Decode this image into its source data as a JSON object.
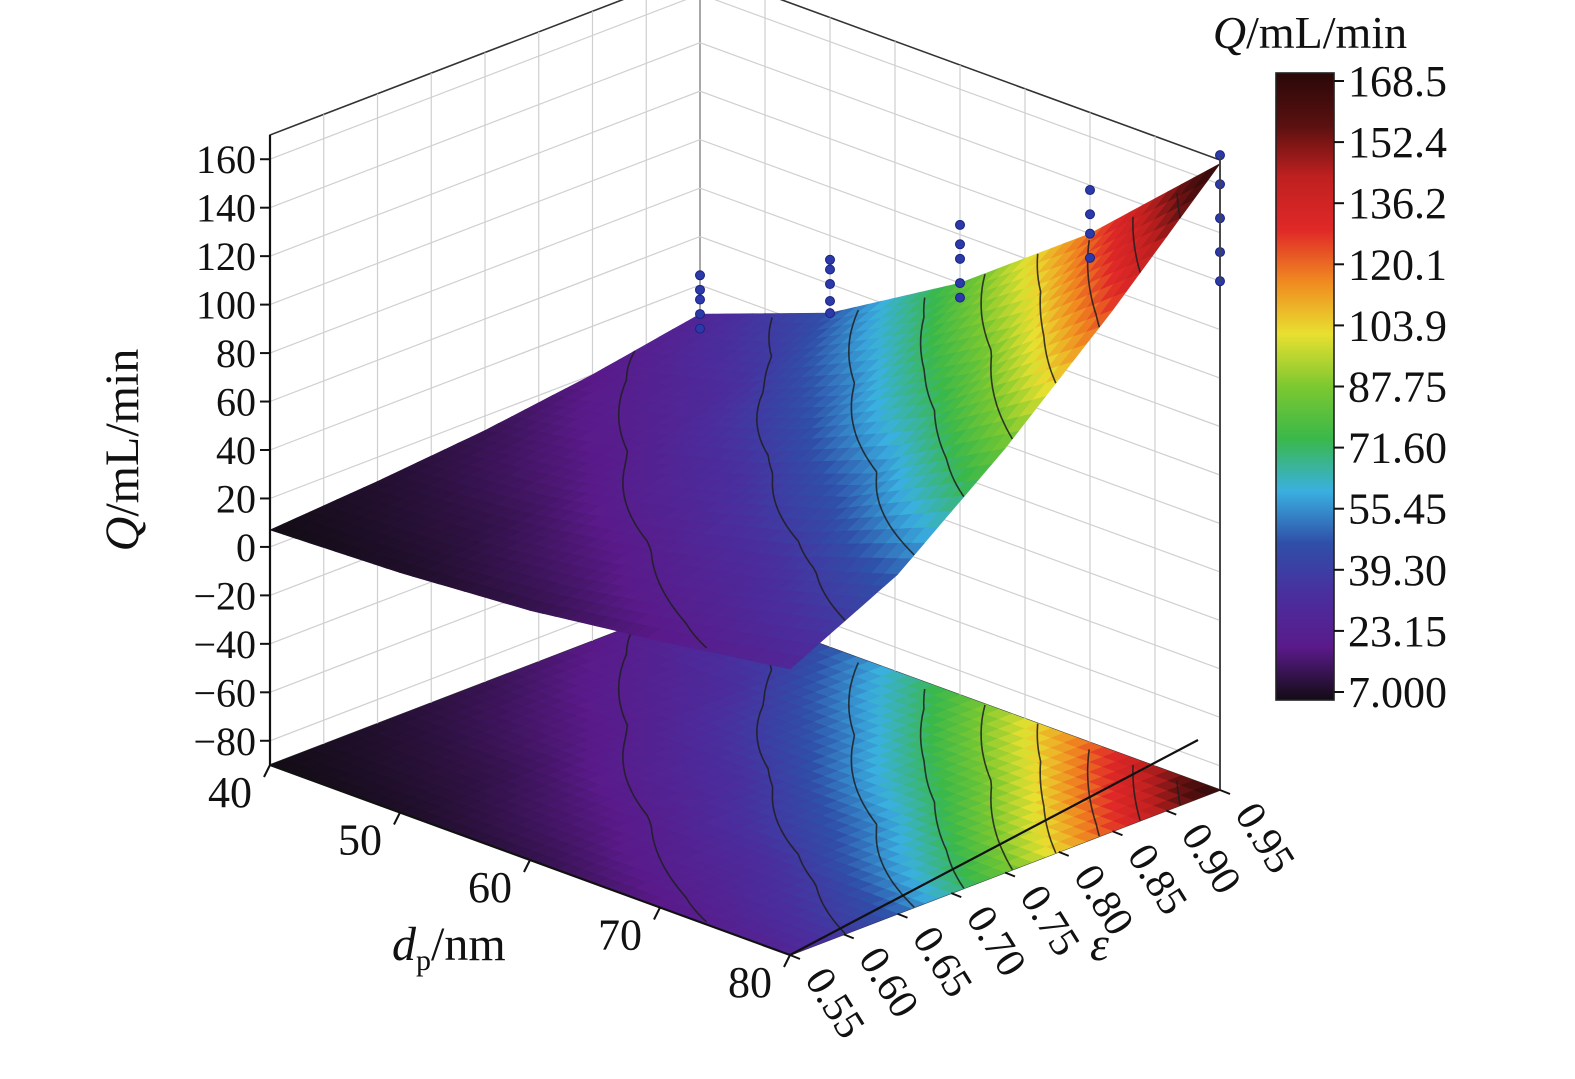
{
  "chart_data": {
    "type": "surface3d",
    "x_axis": {
      "label_main": "d",
      "label_sub": "p",
      "label_unit": "/nm",
      "range": [
        40,
        80
      ],
      "ticks": [
        "40",
        "50",
        "60",
        "70",
        "80"
      ]
    },
    "y_axis": {
      "label": "ε",
      "range": [
        0.55,
        0.95
      ],
      "ticks": [
        "0.55",
        "0.60",
        "0.65",
        "0.70",
        "0.75",
        "0.80",
        "0.85",
        "0.90",
        "0.95"
      ]
    },
    "z_axis": {
      "label_italic": "Q",
      "label_unit": "/mL/min",
      "range": [
        -90,
        170
      ],
      "ticks": [
        "−80",
        "−60",
        "−40",
        "−20",
        "0",
        "20",
        "40",
        "60",
        "80",
        "100",
        "120",
        "140",
        "160"
      ]
    },
    "colorbar": {
      "title_italic": "Q",
      "title_unit": "/mL/min",
      "labels": [
        "168.5",
        "152.4",
        "136.2",
        "120.1",
        "103.9",
        "87.75",
        "71.60",
        "55.45",
        "39.30",
        "23.15",
        "7.000"
      ],
      "min": 7.0,
      "max": 168.5,
      "colors": [
        "#120c14",
        "#5a1a8a",
        "#4a2e9e",
        "#2f4fa8",
        "#3ab0e0",
        "#3ab84a",
        "#7cc830",
        "#e8e030",
        "#f08a20",
        "#e02828",
        "#c02020",
        "#5a1010",
        "#2a0808"
      ]
    },
    "surface": {
      "x": [
        40,
        50,
        60,
        70,
        80
      ],
      "y": [
        0.55,
        0.65,
        0.75,
        0.85,
        0.95
      ],
      "z": [
        [
          7,
          9,
          13,
          20,
          28
        ],
        [
          10,
          14,
          22,
          33,
          50
        ],
        [
          14,
          22,
          35,
          55,
          85
        ],
        [
          20,
          32,
          55,
          85,
          125
        ],
        [
          28,
          48,
          80,
          120,
          168.5
        ]
      ]
    },
    "scatter_points": [
      {
        "x": 40,
        "y": 0.95,
        "z": [
          22,
          28,
          34,
          38,
          44
        ]
      },
      {
        "x": 50,
        "y": 0.95,
        "z": [
          48,
          53,
          60,
          66,
          70
        ]
      },
      {
        "x": 60,
        "y": 0.95,
        "z": [
          74,
          80,
          90,
          96,
          104
        ]
      },
      {
        "x": 70,
        "y": 0.95,
        "z": [
          110,
          120,
          128,
          138
        ]
      },
      {
        "x": 80,
        "y": 0.95,
        "z": [
          120,
          132,
          146,
          160,
          172
        ]
      }
    ]
  }
}
